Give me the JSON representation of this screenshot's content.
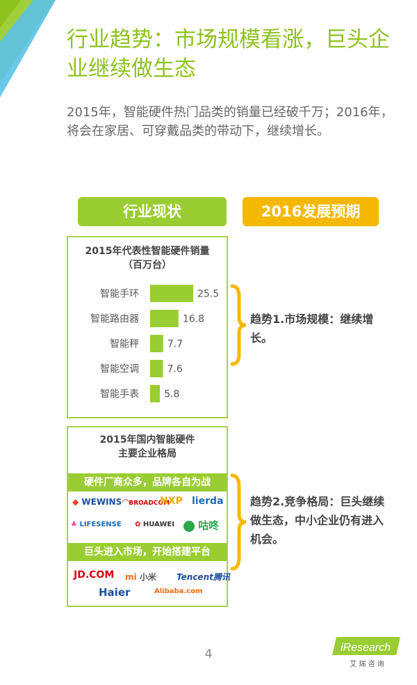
{
  "title": "行业趋势：市场规模看涨，巨头企业继续做生态",
  "intro": "2015年，智能硬件热门品类的销量已经破千万；2016年，将会在家居、可穿戴品类的带动下，继续增长。",
  "left_header": "行业现状",
  "right_header": "2016发展预期",
  "chart_panel": {
    "title_line1": "2015年代表性智能硬件销量",
    "title_line2": "（百万台）"
  },
  "chart_data": {
    "type": "bar",
    "orientation": "horizontal",
    "title": "2015年代表性智能硬件销量（百万台）",
    "categories": [
      "智能手环",
      "智能路由器",
      "智能秤",
      "智能空调",
      "智能手表"
    ],
    "values": [
      25.5,
      16.8,
      7.7,
      7.6,
      5.8
    ],
    "value_labels": [
      "25.5",
      "16.8",
      "7.7",
      "7.6",
      "5.8"
    ],
    "bar_color": "#9acd32"
  },
  "landscape_panel": {
    "title_line1": "2015年国内智能硬件",
    "title_line2": "主要企业格局",
    "strip1": "硬件厂商众多，品牌各自为战",
    "strip2": "巨头进入市场，开始搭建平台",
    "logos_row1": [
      "WEWINS",
      "BROADCOM",
      "NXP",
      "lierda"
    ],
    "logos_row2": [
      "LIFESENSE",
      "HUAWEI",
      "咕咚"
    ],
    "logos_row3": [
      "JD.COM",
      "小米",
      "Tencent腾讯"
    ],
    "logos_row4": [
      "Haier",
      "Alibaba.com"
    ]
  },
  "trend1": "趋势1.市场规模：继续增长。",
  "trend2": "趋势2.竞争格局：巨头继续做生态，中小企业仍有进入机会。",
  "page_number": "4",
  "brand": {
    "name": "iResearch",
    "sub": "艾 瑞 咨 询"
  },
  "colors": {
    "green": "#9acd32",
    "orange": "#f5b800",
    "title_green": "#8dc21f",
    "corner_blue": "#5bc2e7"
  }
}
